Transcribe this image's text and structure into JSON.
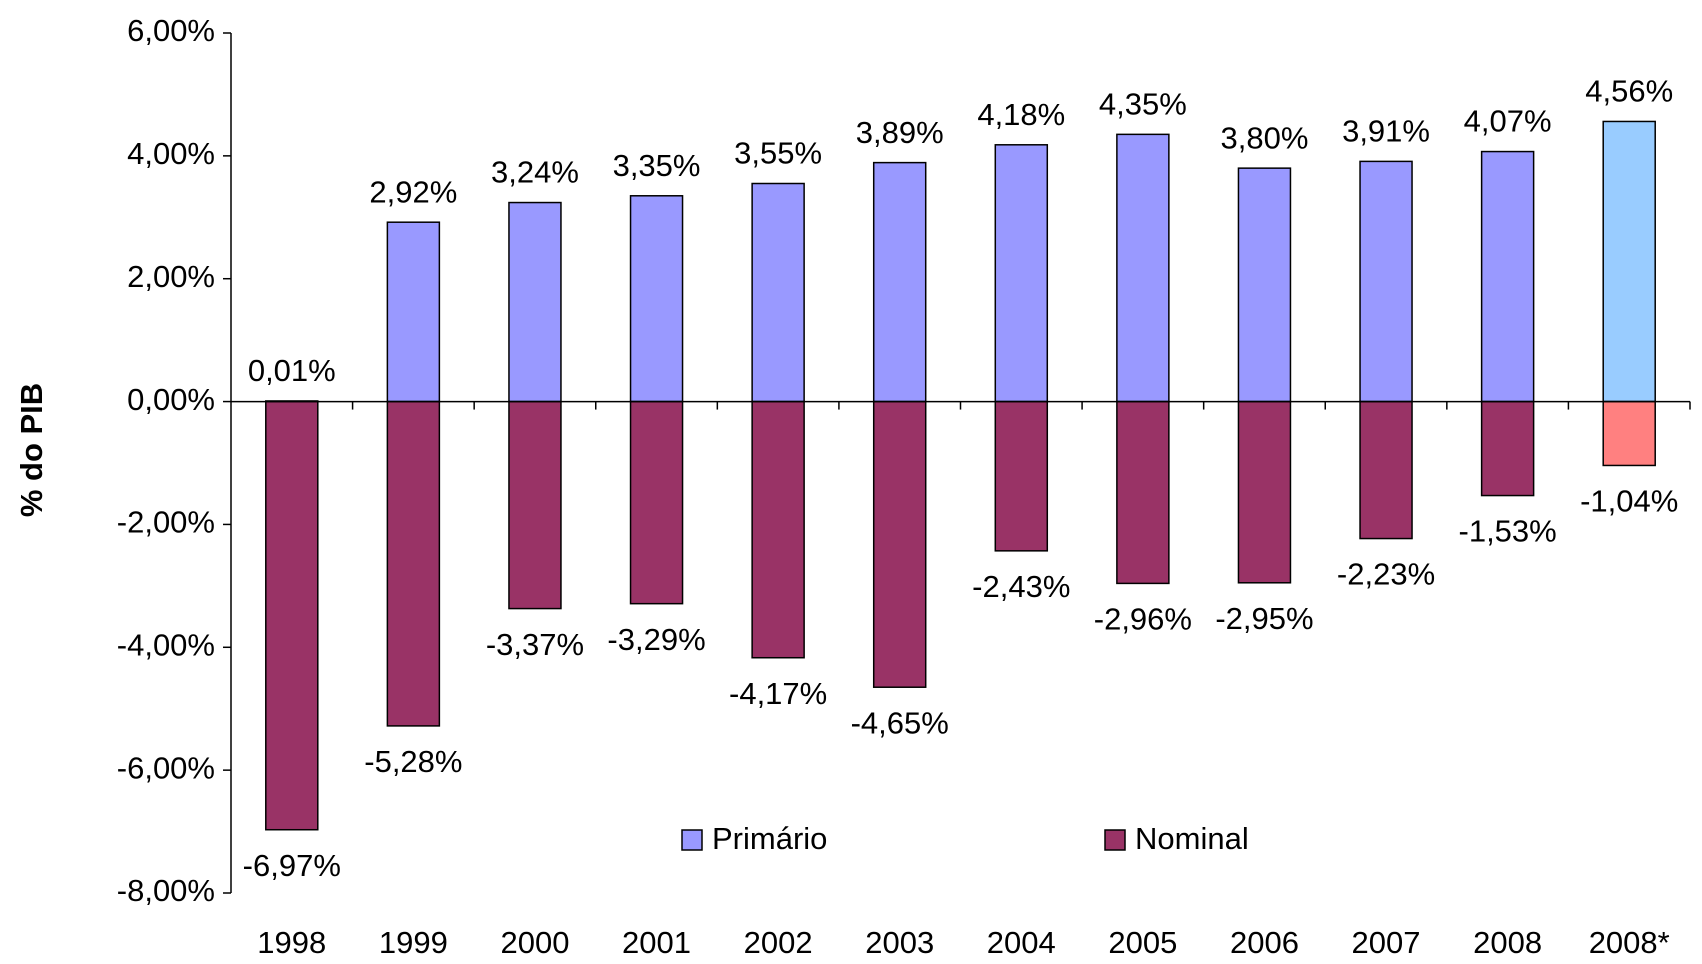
{
  "chart_data": {
    "type": "bar",
    "y_label": "% do PIB",
    "categories": [
      "1998",
      "1999",
      "2000",
      "2001",
      "2002",
      "2003",
      "2004",
      "2005",
      "2006",
      "2007",
      "2008",
      "2008*"
    ],
    "series": [
      {
        "name": "Primário",
        "color": "#9999ff",
        "colors": [
          "#9999ff",
          "#9999ff",
          "#9999ff",
          "#9999ff",
          "#9999ff",
          "#9999ff",
          "#9999ff",
          "#9999ff",
          "#9999ff",
          "#9999ff",
          "#9999ff",
          "#99ccff"
        ],
        "values": [
          0.01,
          2.92,
          3.24,
          3.35,
          3.55,
          3.89,
          4.18,
          4.35,
          3.8,
          3.91,
          4.07,
          4.56
        ],
        "value_labels": [
          "0,01%",
          "2,92%",
          "3,24%",
          "3,35%",
          "3,55%",
          "3,89%",
          "4,18%",
          "4,35%",
          "3,80%",
          "3,91%",
          "4,07%",
          "4,56%"
        ]
      },
      {
        "name": "Nominal",
        "color": "#993366",
        "colors": [
          "#993366",
          "#993366",
          "#993366",
          "#993366",
          "#993366",
          "#993366",
          "#993366",
          "#993366",
          "#993366",
          "#993366",
          "#993366",
          "#ff8080"
        ],
        "values": [
          -6.97,
          -5.28,
          -3.37,
          -3.29,
          -4.17,
          -4.65,
          -2.43,
          -2.96,
          -2.95,
          -2.23,
          -1.53,
          -1.04
        ],
        "value_labels": [
          "-6,97%",
          "-5,28%",
          "-3,37%",
          "-3,29%",
          "-4,17%",
          "-4,65%",
          "-2,43%",
          "-2,96%",
          "-2,95%",
          "-2,23%",
          "-1,53%",
          "-1,04%"
        ]
      }
    ],
    "ylim": [
      -8,
      6
    ],
    "yticks": [
      {
        "value": -8,
        "label": "-8,00%"
      },
      {
        "value": -6,
        "label": "-6,00%"
      },
      {
        "value": -4,
        "label": "-4,00%"
      },
      {
        "value": -2,
        "label": "-2,00%"
      },
      {
        "value": 0,
        "label": "0,00%"
      },
      {
        "value": 2,
        "label": "2,00%"
      },
      {
        "value": 4,
        "label": "4,00%"
      },
      {
        "value": 6,
        "label": "6,00%"
      }
    ]
  }
}
